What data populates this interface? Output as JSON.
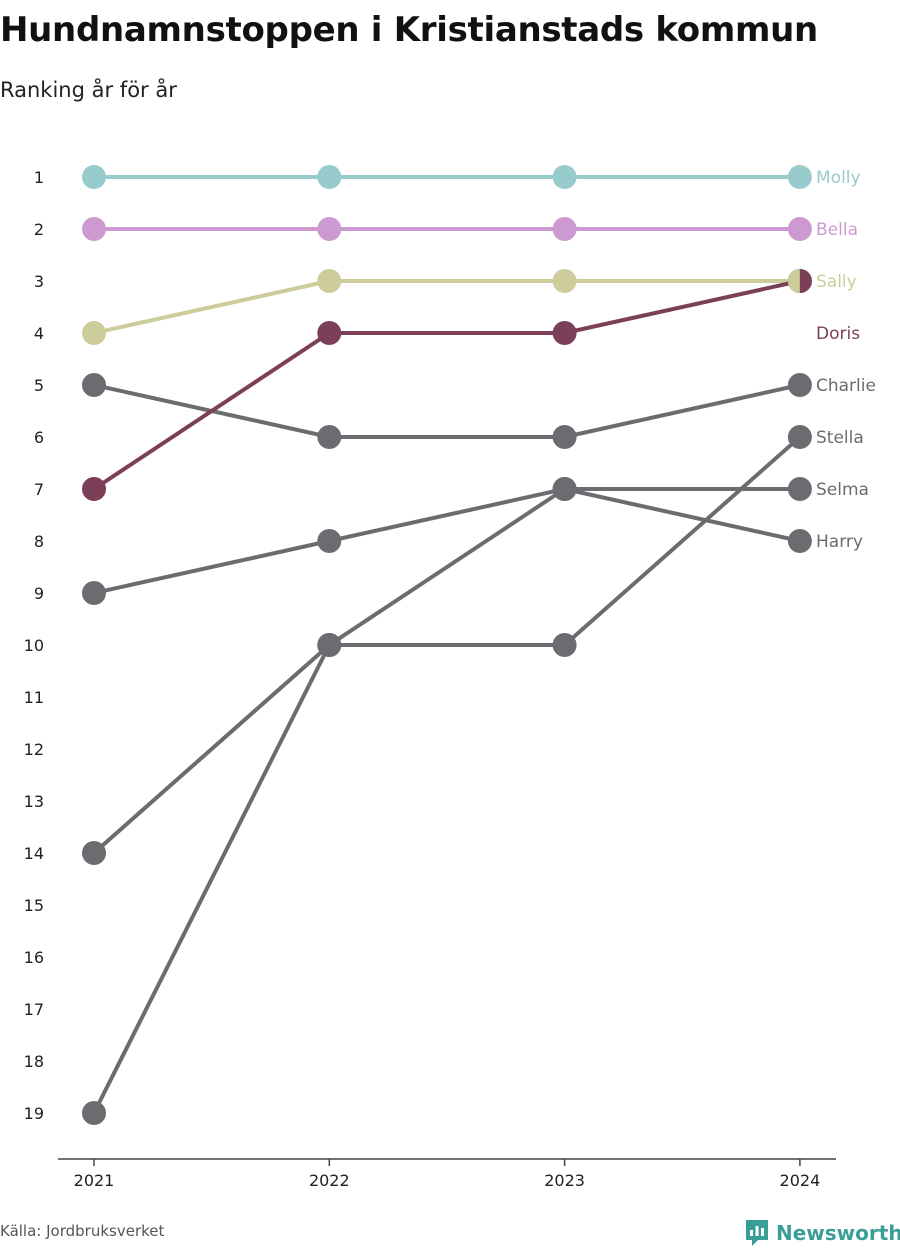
{
  "chart_data": {
    "type": "line",
    "title": "Hundnamnstoppen i Kristianstads kommun",
    "subtitle": "Ranking år för år",
    "x": [
      "2021",
      "2022",
      "2023",
      "2024"
    ],
    "y_ticks": [
      "1",
      "2",
      "3",
      "4",
      "5",
      "6",
      "7",
      "8",
      "9",
      "10",
      "11",
      "12",
      "13",
      "14",
      "15",
      "16",
      "17",
      "18",
      "19"
    ],
    "ylim": [
      1,
      19
    ],
    "y_reversed": true,
    "grid": false,
    "series": [
      {
        "name": "Molly",
        "values": [
          1,
          1,
          1,
          1
        ],
        "color": "#98cbcb"
      },
      {
        "name": "Bella",
        "values": [
          2,
          2,
          2,
          2
        ],
        "color": "#cc9ad1"
      },
      {
        "name": "Sally",
        "values": [
          4,
          3,
          3,
          3
        ],
        "color": "#cccd9a"
      },
      {
        "name": "Doris",
        "values": [
          7,
          4,
          4,
          3
        ],
        "color": "#7b3f57"
      },
      {
        "name": "Charlie",
        "values": [
          5,
          6,
          6,
          5
        ],
        "color": "#6c6c70"
      },
      {
        "name": "Stella",
        "values": [
          19,
          10,
          10,
          6
        ],
        "color": "#6c6c70"
      },
      {
        "name": "Selma",
        "values": [
          14,
          10,
          7,
          7
        ],
        "color": "#6c6c70"
      },
      {
        "name": "Harry",
        "values": [
          9,
          8,
          7,
          8
        ],
        "color": "#6c6c70"
      }
    ],
    "label_positions_rank": {
      "Molly": 1,
      "Bella": 2,
      "Sally": 3,
      "Doris": 4,
      "Charlie": 5,
      "Stella": 6,
      "Selma": 7,
      "Harry": 8
    }
  },
  "footer": {
    "source": "Källa: Jordbruksverket",
    "logo_text": "Newsworthy"
  },
  "colors": {
    "logo": "#3a9e98",
    "axis": "#444444"
  }
}
